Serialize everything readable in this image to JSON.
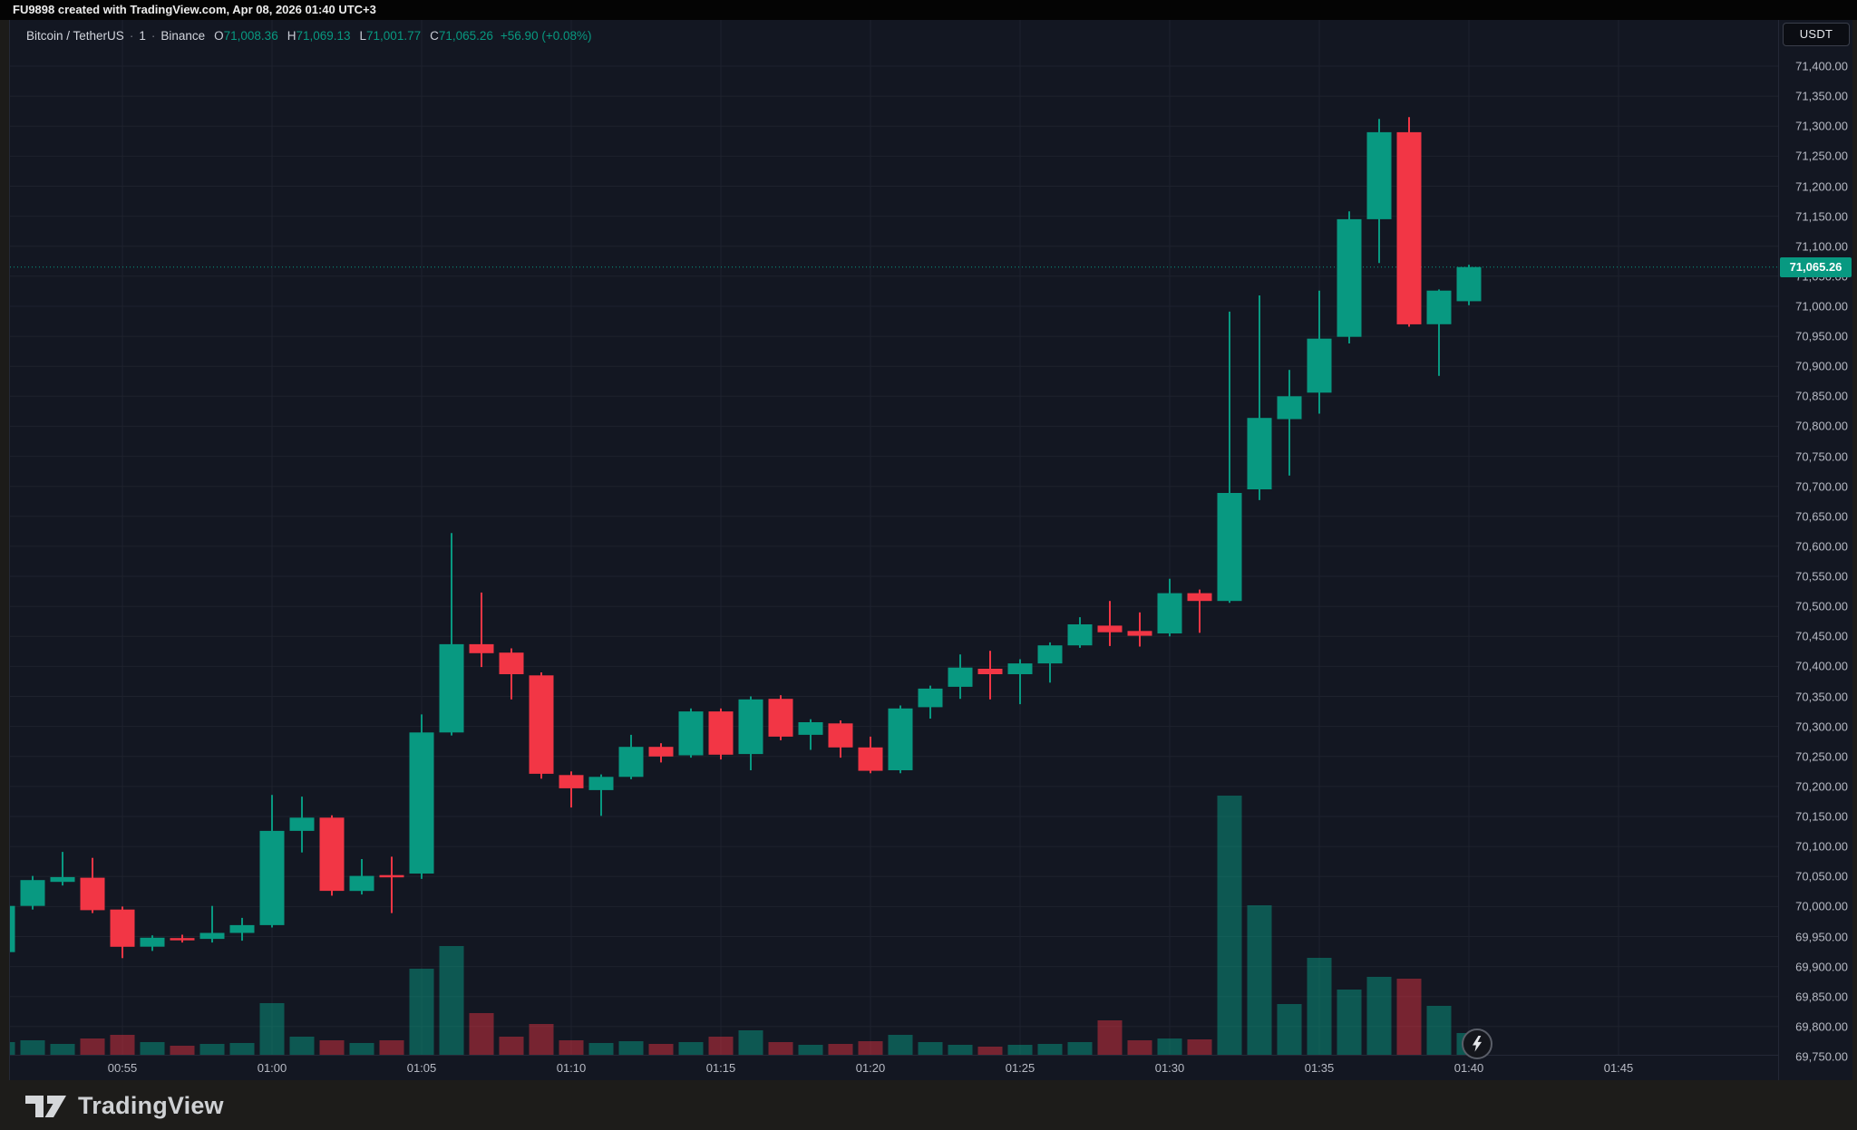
{
  "header": {
    "attribution": "FU9898 created with TradingView.com, Apr 08, 2026 01:40 UTC+3"
  },
  "legend": {
    "symbol": "Bitcoin / TetherUS",
    "interval": "1",
    "exchange": "Binance",
    "separator": "·",
    "o_label": "O",
    "o_value": "71,008.36",
    "h_label": "H",
    "h_value": "71,069.13",
    "l_label": "L",
    "l_value": "71,001.77",
    "c_label": "C",
    "c_value": "71,065.26",
    "change": "+56.90 (+0.08%)"
  },
  "price_axis": {
    "currency_button": "USDT",
    "current_price_label": "71,065.26",
    "labels": [
      "71,400.00",
      "71,350.00",
      "71,300.00",
      "71,250.00",
      "71,200.00",
      "71,150.00",
      "71,100.00",
      "71,050.00",
      "71,000.00",
      "70,950.00",
      "70,900.00",
      "70,850.00",
      "70,800.00",
      "70,750.00",
      "70,700.00",
      "70,650.00",
      "70,600.00",
      "70,550.00",
      "70,500.00",
      "70,450.00",
      "70,400.00",
      "70,350.00",
      "70,300.00",
      "70,250.00",
      "70,200.00",
      "70,150.00",
      "70,100.00",
      "70,050.00",
      "70,000.00",
      "69,950.00",
      "69,900.00",
      "69,850.00",
      "69,800.00",
      "69,750.00"
    ]
  },
  "time_axis": {
    "labels": [
      "00:55",
      "01:00",
      "01:05",
      "01:10",
      "01:15",
      "01:20",
      "01:25",
      "01:30",
      "01:35",
      "01:40",
      "01:45"
    ]
  },
  "branding": {
    "logo_text": "TradingView"
  },
  "colors": {
    "up": "#089981",
    "down": "#f23645",
    "vol_up": "rgba(8,153,129,0.5)",
    "vol_down": "rgba(242,54,69,0.45)",
    "grid": "#1e222d",
    "pane_bg": "#131722",
    "axis_text": "#b7bac4",
    "current_price_line": "#089981",
    "badge_bg": "#089981"
  },
  "chart_data": {
    "type": "candlestick+volume",
    "title": "Bitcoin / TetherUS, 1 minute, Binance",
    "current_price": 71065.26,
    "price_axis_range": [
      69750,
      71400
    ],
    "price_axis_step": 50,
    "grid": true,
    "x": [
      "00:51",
      "00:52",
      "00:53",
      "00:54",
      "00:55",
      "00:56",
      "00:57",
      "00:58",
      "00:59",
      "01:00",
      "01:01",
      "01:02",
      "01:03",
      "01:04",
      "01:05",
      "01:06",
      "01:07",
      "01:08",
      "01:09",
      "01:10",
      "01:11",
      "01:12",
      "01:13",
      "01:14",
      "01:15",
      "01:16",
      "01:17",
      "01:18",
      "01:19",
      "01:20",
      "01:21",
      "01:22",
      "01:23",
      "01:24",
      "01:25",
      "01:26",
      "01:27",
      "01:28",
      "01:29",
      "01:30",
      "01:31",
      "01:32",
      "01:33",
      "01:34",
      "01:35",
      "01:36",
      "01:37",
      "01:38",
      "01:39",
      "01:40"
    ],
    "candles_ohlc": [
      [
        69924,
        70008,
        69918,
        70001
      ],
      [
        70001,
        70051,
        69995,
        70044
      ],
      [
        70041,
        70091,
        70035,
        70049
      ],
      [
        70048,
        70081,
        69989,
        69994
      ],
      [
        69995,
        70000,
        69914,
        69933
      ],
      [
        69933,
        69952,
        69926,
        69948
      ],
      [
        69947,
        69953,
        69940,
        69944
      ],
      [
        69946,
        70001,
        69940,
        69956
      ],
      [
        69956,
        69981,
        69943,
        69969
      ],
      [
        69969,
        70186,
        69965,
        70126
      ],
      [
        70126,
        70183,
        70090,
        70148
      ],
      [
        70148,
        70152,
        70018,
        70026
      ],
      [
        70026,
        70079,
        70020,
        70051
      ],
      [
        70051,
        70083,
        69989,
        70050
      ],
      [
        70055,
        70320,
        70046,
        70290
      ],
      [
        70290,
        70622,
        70285,
        70437
      ],
      [
        70437,
        70523,
        70399,
        70422
      ],
      [
        70423,
        70430,
        70345,
        70387
      ],
      [
        70385,
        70390,
        70213,
        70221
      ],
      [
        70219,
        70225,
        70165,
        70197
      ],
      [
        70194,
        70220,
        70151,
        70216
      ],
      [
        70216,
        70286,
        70212,
        70266
      ],
      [
        70266,
        70272,
        70240,
        70250
      ],
      [
        70252,
        70330,
        70248,
        70325
      ],
      [
        70325,
        70330,
        70245,
        70253
      ],
      [
        70254,
        70350,
        70227,
        70345
      ],
      [
        70346,
        70352,
        70277,
        70283
      ],
      [
        70286,
        70312,
        70261,
        70307
      ],
      [
        70305,
        70310,
        70248,
        70265
      ],
      [
        70265,
        70283,
        70222,
        70226
      ],
      [
        70227,
        70335,
        70222,
        70330
      ],
      [
        70332,
        70368,
        70313,
        70363
      ],
      [
        70366,
        70420,
        70346,
        70398
      ],
      [
        70396,
        70426,
        70345,
        70387
      ],
      [
        70387,
        70412,
        70337,
        70405
      ],
      [
        70405,
        70440,
        70373,
        70435
      ],
      [
        70435,
        70482,
        70431,
        70470
      ],
      [
        70468,
        70509,
        70434,
        70457
      ],
      [
        70459,
        70490,
        70433,
        70451
      ],
      [
        70455,
        70546,
        70450,
        70522
      ],
      [
        70522,
        70528,
        70456,
        70509
      ],
      [
        70509,
        70991,
        70506,
        70689
      ],
      [
        70695,
        71018,
        70677,
        70814
      ],
      [
        70812,
        70894,
        70718,
        70850
      ],
      [
        70856,
        71026,
        70821,
        70946
      ],
      [
        70949,
        71158,
        70938,
        71145
      ],
      [
        71145,
        71312,
        71072,
        71290
      ],
      [
        71290,
        71315,
        70966,
        70970
      ],
      [
        70970,
        71028,
        70884,
        71026
      ],
      [
        71008.36,
        71069.13,
        71001.77,
        71065.26
      ]
    ],
    "volumes": [
      14,
      16,
      12,
      18,
      22,
      14,
      10,
      12,
      13,
      57,
      20,
      16,
      13,
      16,
      95,
      120,
      46,
      20,
      34,
      16,
      13,
      15,
      12,
      14,
      20,
      27,
      14,
      11,
      12,
      15,
      22,
      14,
      11,
      9,
      11,
      12,
      14,
      38,
      16,
      18,
      17,
      286,
      165,
      56,
      107,
      72,
      86,
      84,
      54,
      24
    ],
    "volume_note": "relative heights; tallest bar (01:32) = 286 units"
  }
}
